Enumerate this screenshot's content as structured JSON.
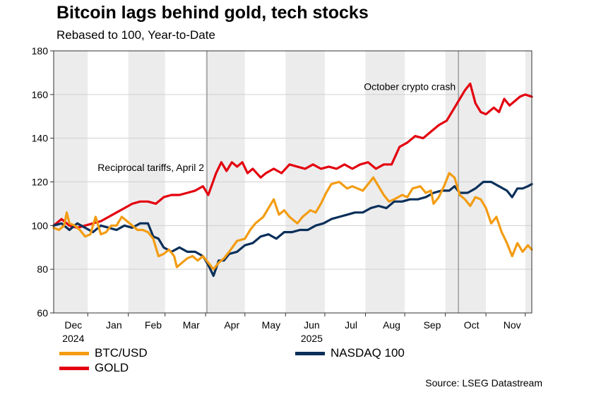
{
  "chart_data": {
    "type": "line",
    "title": "Bitcoin lags behind gold, tech stocks",
    "subtitle": "Rebased to 100, Year-to-Date",
    "source": "Source: LSEG Datastream",
    "ylim": [
      60,
      180
    ],
    "yticks": [
      60,
      80,
      100,
      120,
      140,
      160,
      180
    ],
    "x_range_days": [
      0,
      365
    ],
    "month_labels": [
      {
        "label": "Dec",
        "day": 15
      },
      {
        "label": "Jan",
        "day": 46
      },
      {
        "label": "Feb",
        "day": 76
      },
      {
        "label": "Mar",
        "day": 105
      },
      {
        "label": "Apr",
        "day": 136
      },
      {
        "label": "May",
        "day": 166
      },
      {
        "label": "Jun",
        "day": 197
      },
      {
        "label": "Jul",
        "day": 227
      },
      {
        "label": "Aug",
        "day": 258
      },
      {
        "label": "Sep",
        "day": 289
      },
      {
        "label": "Oct",
        "day": 319
      },
      {
        "label": "Nov",
        "day": 350
      }
    ],
    "year_labels": [
      {
        "label": "2024",
        "day": 15
      },
      {
        "label": "2025",
        "day": 197
      }
    ],
    "shaded_months": [
      [
        0,
        26
      ],
      [
        57,
        85
      ],
      [
        116,
        146
      ],
      [
        177,
        207
      ],
      [
        238,
        268
      ],
      [
        299,
        330
      ],
      [
        360,
        365
      ]
    ],
    "annotations": [
      {
        "text": "Reciprocal tariffs, April 2",
        "day": 117,
        "y": 125
      },
      {
        "text": "October crypto crash",
        "day": 309,
        "y": 162
      }
    ],
    "event_lines": [
      117,
      309
    ],
    "legend": [
      {
        "name": "BTC/USD",
        "color": "#f39c12"
      },
      {
        "name": "GOLD",
        "color": "#e3000f"
      },
      {
        "name": "NASDAQ 100",
        "color": "#0a2f5a"
      }
    ],
    "series": [
      {
        "name": "GOLD",
        "color": "#e3000f",
        "points": [
          [
            0,
            100
          ],
          [
            6,
            103
          ],
          [
            12,
            100
          ],
          [
            18,
            99
          ],
          [
            24,
            100
          ],
          [
            30,
            101
          ],
          [
            36,
            102
          ],
          [
            42,
            104
          ],
          [
            48,
            106
          ],
          [
            54,
            108
          ],
          [
            60,
            110
          ],
          [
            66,
            111
          ],
          [
            72,
            111
          ],
          [
            78,
            110
          ],
          [
            84,
            113
          ],
          [
            90,
            114
          ],
          [
            96,
            114
          ],
          [
            102,
            115
          ],
          [
            108,
            116
          ],
          [
            114,
            118
          ],
          [
            118,
            114
          ],
          [
            124,
            124
          ],
          [
            128,
            129
          ],
          [
            132,
            125
          ],
          [
            136,
            129
          ],
          [
            140,
            127
          ],
          [
            144,
            129
          ],
          [
            148,
            124
          ],
          [
            152,
            126
          ],
          [
            158,
            122
          ],
          [
            162,
            124
          ],
          [
            168,
            126
          ],
          [
            174,
            124
          ],
          [
            180,
            128
          ],
          [
            186,
            127
          ],
          [
            192,
            126
          ],
          [
            198,
            128
          ],
          [
            204,
            126
          ],
          [
            210,
            127
          ],
          [
            216,
            126
          ],
          [
            222,
            128
          ],
          [
            228,
            126
          ],
          [
            234,
            128
          ],
          [
            240,
            129
          ],
          [
            246,
            126
          ],
          [
            252,
            128
          ],
          [
            258,
            128
          ],
          [
            264,
            136
          ],
          [
            270,
            138
          ],
          [
            276,
            141
          ],
          [
            282,
            140
          ],
          [
            288,
            143
          ],
          [
            294,
            146
          ],
          [
            300,
            148
          ],
          [
            306,
            154
          ],
          [
            310,
            158
          ],
          [
            314,
            162
          ],
          [
            318,
            165
          ],
          [
            322,
            156
          ],
          [
            326,
            152
          ],
          [
            330,
            151
          ],
          [
            336,
            154
          ],
          [
            340,
            152
          ],
          [
            344,
            158
          ],
          [
            348,
            155
          ],
          [
            352,
            157
          ],
          [
            356,
            159
          ],
          [
            360,
            160
          ],
          [
            365,
            159
          ]
        ]
      },
      {
        "name": "NASDAQ 100",
        "color": "#0a2f5a",
        "points": [
          [
            0,
            100
          ],
          [
            6,
            101
          ],
          [
            12,
            98
          ],
          [
            18,
            101
          ],
          [
            24,
            99
          ],
          [
            30,
            97
          ],
          [
            36,
            100
          ],
          [
            42,
            99
          ],
          [
            48,
            98
          ],
          [
            54,
            100
          ],
          [
            60,
            99
          ],
          [
            66,
            101
          ],
          [
            72,
            101
          ],
          [
            76,
            95
          ],
          [
            80,
            94
          ],
          [
            84,
            90
          ],
          [
            90,
            88
          ],
          [
            96,
            90
          ],
          [
            102,
            88
          ],
          [
            108,
            88
          ],
          [
            114,
            86
          ],
          [
            118,
            82
          ],
          [
            122,
            77
          ],
          [
            126,
            84
          ],
          [
            130,
            84
          ],
          [
            134,
            87
          ],
          [
            140,
            88
          ],
          [
            146,
            91
          ],
          [
            152,
            92
          ],
          [
            158,
            95
          ],
          [
            164,
            96
          ],
          [
            170,
            94
          ],
          [
            176,
            97
          ],
          [
            182,
            97
          ],
          [
            188,
            98
          ],
          [
            194,
            98
          ],
          [
            200,
            100
          ],
          [
            206,
            101
          ],
          [
            212,
            103
          ],
          [
            218,
            104
          ],
          [
            224,
            105
          ],
          [
            230,
            106
          ],
          [
            236,
            106
          ],
          [
            242,
            108
          ],
          [
            248,
            109
          ],
          [
            254,
            108
          ],
          [
            260,
            111
          ],
          [
            266,
            111
          ],
          [
            272,
            112
          ],
          [
            278,
            112
          ],
          [
            284,
            113
          ],
          [
            290,
            115
          ],
          [
            296,
            116
          ],
          [
            302,
            116
          ],
          [
            306,
            118
          ],
          [
            310,
            115
          ],
          [
            316,
            115
          ],
          [
            322,
            117
          ],
          [
            328,
            120
          ],
          [
            334,
            120
          ],
          [
            340,
            118
          ],
          [
            346,
            116
          ],
          [
            350,
            113
          ],
          [
            354,
            117
          ],
          [
            358,
            117
          ],
          [
            362,
            118
          ],
          [
            365,
            119
          ]
        ]
      },
      {
        "name": "BTC/USD",
        "color": "#f39c12",
        "points": [
          [
            0,
            99
          ],
          [
            4,
            98
          ],
          [
            8,
            100
          ],
          [
            10,
            106
          ],
          [
            12,
            101
          ],
          [
            16,
            100
          ],
          [
            20,
            98
          ],
          [
            24,
            95
          ],
          [
            28,
            96
          ],
          [
            32,
            104
          ],
          [
            36,
            96
          ],
          [
            40,
            97
          ],
          [
            44,
            100
          ],
          [
            48,
            100
          ],
          [
            52,
            104
          ],
          [
            56,
            102
          ],
          [
            60,
            100
          ],
          [
            64,
            98
          ],
          [
            68,
            98
          ],
          [
            72,
            97
          ],
          [
            76,
            94
          ],
          [
            80,
            86
          ],
          [
            84,
            87
          ],
          [
            88,
            89
          ],
          [
            92,
            86
          ],
          [
            94,
            81
          ],
          [
            98,
            83
          ],
          [
            102,
            85
          ],
          [
            106,
            86
          ],
          [
            110,
            84
          ],
          [
            114,
            86
          ],
          [
            118,
            83
          ],
          [
            122,
            80
          ],
          [
            126,
            83
          ],
          [
            130,
            85
          ],
          [
            134,
            88
          ],
          [
            140,
            93
          ],
          [
            146,
            94
          ],
          [
            150,
            98
          ],
          [
            154,
            101
          ],
          [
            160,
            104
          ],
          [
            164,
            108
          ],
          [
            168,
            112
          ],
          [
            172,
            105
          ],
          [
            176,
            107
          ],
          [
            180,
            104
          ],
          [
            186,
            101
          ],
          [
            190,
            104
          ],
          [
            196,
            107
          ],
          [
            200,
            106
          ],
          [
            204,
            110
          ],
          [
            208,
            115
          ],
          [
            212,
            119
          ],
          [
            218,
            120
          ],
          [
            224,
            117
          ],
          [
            228,
            118
          ],
          [
            232,
            117
          ],
          [
            236,
            116
          ],
          [
            240,
            119
          ],
          [
            244,
            122
          ],
          [
            248,
            118
          ],
          [
            252,
            114
          ],
          [
            256,
            111
          ],
          [
            260,
            112
          ],
          [
            266,
            114
          ],
          [
            270,
            113
          ],
          [
            274,
            117
          ],
          [
            280,
            118
          ],
          [
            284,
            115
          ],
          [
            288,
            116
          ],
          [
            290,
            110
          ],
          [
            294,
            113
          ],
          [
            298,
            118
          ],
          [
            302,
            124
          ],
          [
            306,
            122
          ],
          [
            310,
            114
          ],
          [
            314,
            112
          ],
          [
            318,
            109
          ],
          [
            322,
            113
          ],
          [
            326,
            112
          ],
          [
            330,
            108
          ],
          [
            334,
            101
          ],
          [
            338,
            104
          ],
          [
            342,
            97
          ],
          [
            346,
            92
          ],
          [
            350,
            86
          ],
          [
            354,
            92
          ],
          [
            358,
            88
          ],
          [
            362,
            91
          ],
          [
            365,
            89
          ]
        ]
      }
    ]
  }
}
